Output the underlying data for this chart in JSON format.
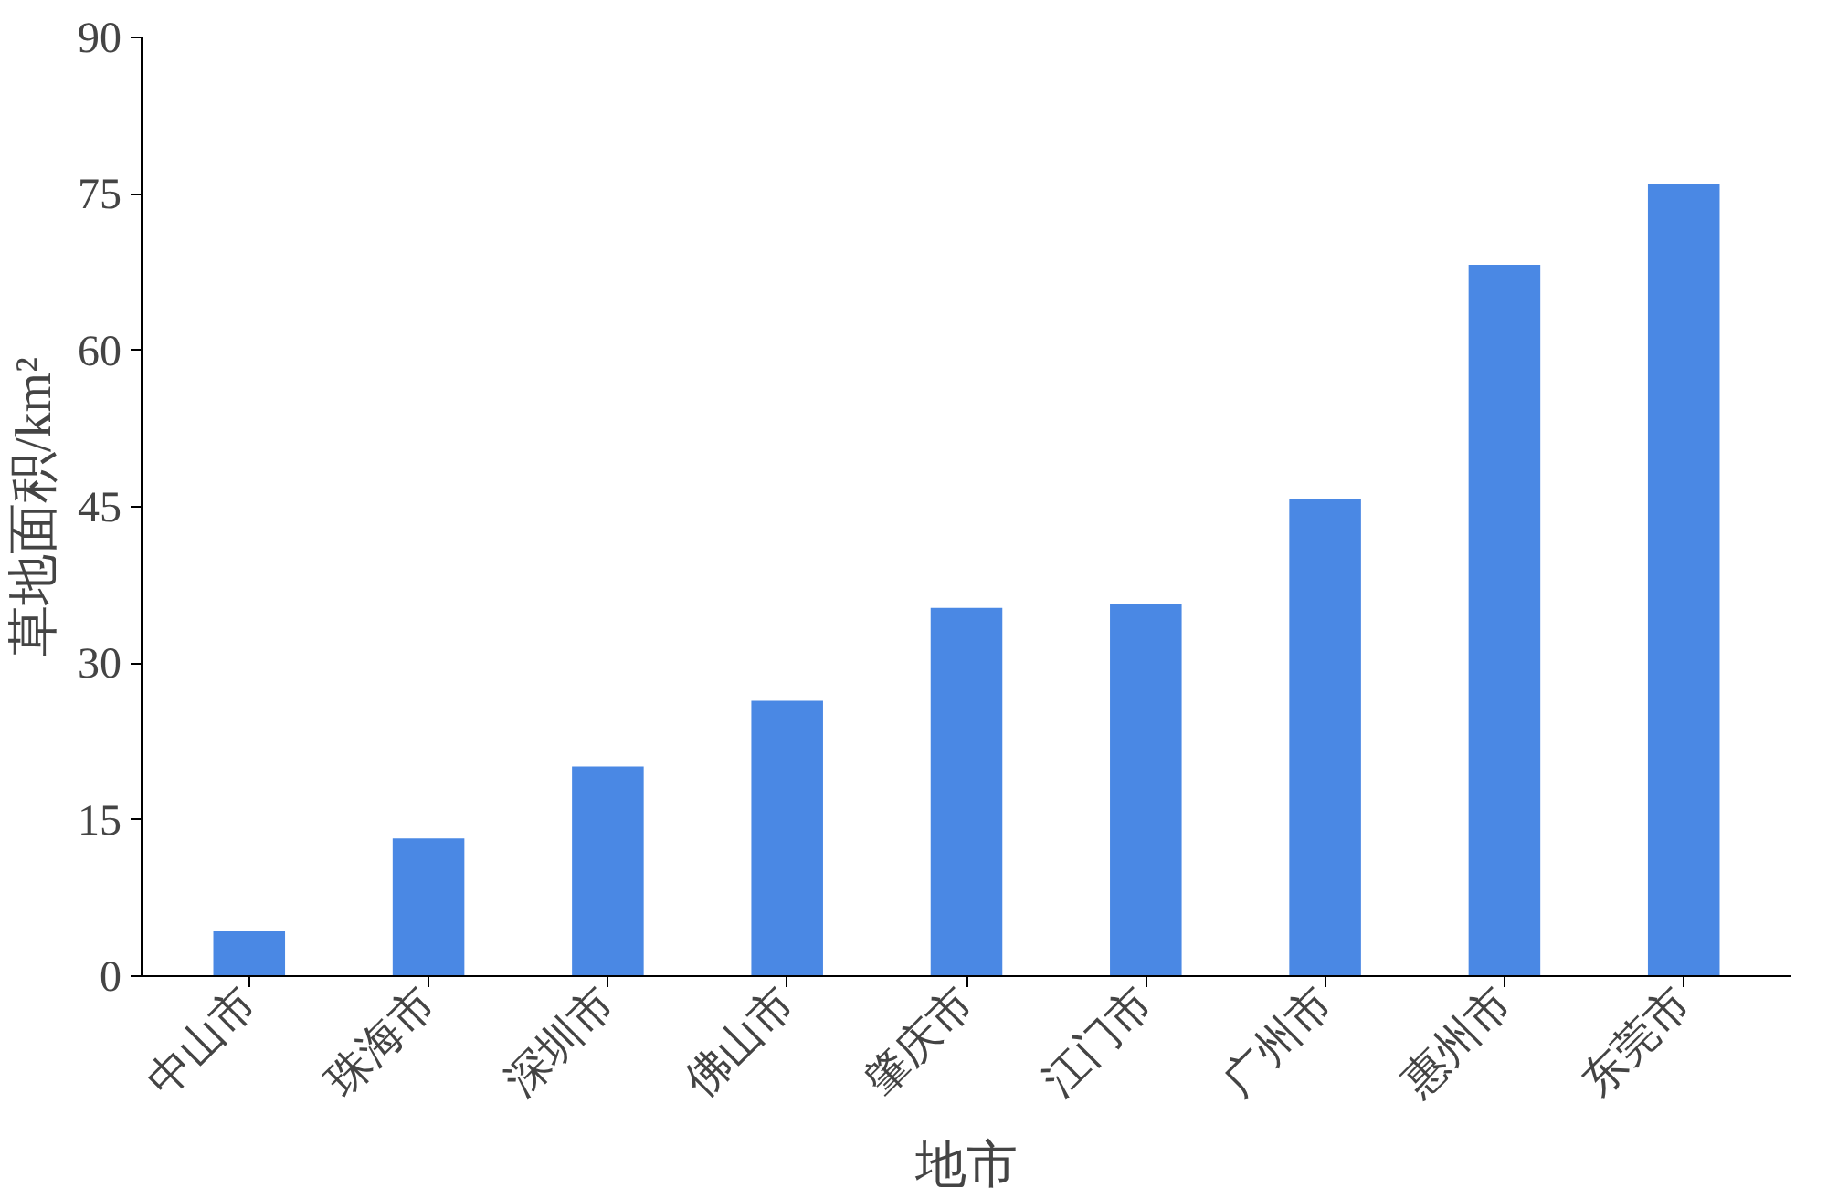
{
  "chart_data": {
    "type": "bar",
    "xlabel": "地市",
    "ylabel": "草地面积/km²",
    "categories": [
      "中山市",
      "珠海市",
      "深圳市",
      "佛山市",
      "肇庆市",
      "江门市",
      "广州市",
      "惠州市",
      "东莞市"
    ],
    "values": [
      4.3,
      13.2,
      20.1,
      26.4,
      35.3,
      35.7,
      45.7,
      68.2,
      75.9
    ],
    "color": "#4a88e4",
    "ylim": [
      0,
      90
    ],
    "yticks": [
      0,
      15,
      30,
      45,
      60,
      75,
      90
    ],
    "grid": false
  }
}
